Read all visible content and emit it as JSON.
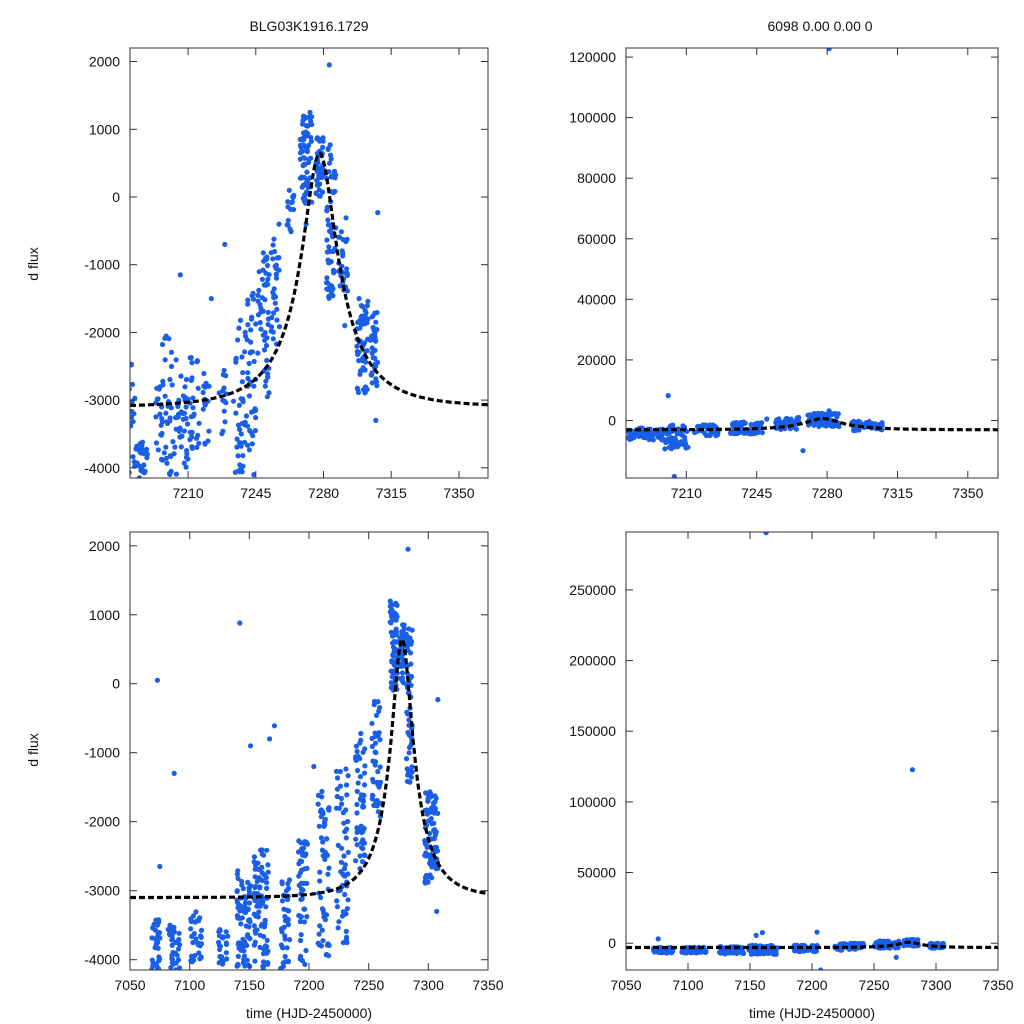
{
  "colors": {
    "points": "#1a5fe6",
    "model": "#000000",
    "frame": "#333333"
  },
  "header": {
    "left_title": "BLG03K1916.1729",
    "right_title": "6098   0.00   0.00   0"
  },
  "axis_text": {
    "xlabel": "time (HJD-2450000)",
    "ylabel": "d flux"
  },
  "chart_data": [
    {
      "id": "top-left",
      "type": "scatter",
      "title": "BLG03K1916.1729",
      "xlabel": "",
      "ylabel": "d flux",
      "xlim": [
        7180,
        7365
      ],
      "ylim": [
        -4150,
        2200
      ],
      "xticks": [
        7210,
        7245,
        7280,
        7315,
        7350
      ],
      "yticks": [
        -4000,
        -3000,
        -2000,
        -1000,
        0,
        1000,
        2000
      ],
      "model": {
        "t0": 7278,
        "tE": 32,
        "u0": 0.28,
        "fs": 1400,
        "base": -4500
      },
      "clusters": [
        {
          "t": 7181,
          "w": 1.5,
          "ylo": -4100,
          "yhi": -2400,
          "n": 14
        },
        {
          "t": 7186,
          "w": 3,
          "ylo": -4150,
          "yhi": -3600,
          "n": 25
        },
        {
          "t": 7195,
          "w": 2,
          "ylo": -4000,
          "yhi": -2700,
          "n": 18
        },
        {
          "t": 7200,
          "w": 4,
          "ylo": -4100,
          "yhi": -1900,
          "n": 40
        },
        {
          "t": 7207,
          "w": 3,
          "ylo": -4000,
          "yhi": -2600,
          "n": 30
        },
        {
          "t": 7213,
          "w": 3,
          "ylo": -3800,
          "yhi": -2200,
          "n": 25
        },
        {
          "t": 7219,
          "w": 2,
          "ylo": -3700,
          "yhi": -2600,
          "n": 15
        },
        {
          "t": 7228,
          "w": 2,
          "ylo": -3500,
          "yhi": -2400,
          "n": 14
        },
        {
          "t": 7236,
          "w": 2.5,
          "ylo": -4100,
          "yhi": -1700,
          "n": 35
        },
        {
          "t": 7242,
          "w": 3,
          "ylo": -3800,
          "yhi": -1400,
          "n": 45
        },
        {
          "t": 7249,
          "w": 3,
          "ylo": -3000,
          "yhi": -800,
          "n": 50
        },
        {
          "t": 7255,
          "w": 2.5,
          "ylo": -2200,
          "yhi": -600,
          "n": 30
        },
        {
          "t": 7263,
          "w": 2,
          "ylo": -600,
          "yhi": 100,
          "n": 15
        },
        {
          "t": 7271,
          "w": 3,
          "ylo": -100,
          "yhi": 1200,
          "n": 70
        },
        {
          "t": 7278,
          "w": 2,
          "ylo": 0,
          "yhi": 900,
          "n": 40
        },
        {
          "t": 7284,
          "w": 2.5,
          "ylo": -1500,
          "yhi": 800,
          "n": 60
        },
        {
          "t": 7290,
          "w": 2.5,
          "ylo": -1400,
          "yhi": -300,
          "n": 30
        },
        {
          "t": 7300,
          "w": 3,
          "ylo": -2900,
          "yhi": -1500,
          "n": 55
        },
        {
          "t": 7306,
          "w": 2,
          "ylo": -2800,
          "yhi": -1600,
          "n": 35
        }
      ],
      "outliers": [
        [
          7182,
          -3200
        ],
        [
          7189,
          -3800
        ],
        [
          7206,
          -1150
        ],
        [
          7222,
          -1500
        ],
        [
          7229,
          -700
        ],
        [
          7244,
          -4100
        ],
        [
          7257,
          -400
        ],
        [
          7271,
          -400
        ],
        [
          7283,
          1950
        ],
        [
          7291,
          -1900
        ],
        [
          7307,
          -3300
        ],
        [
          7308,
          -230
        ],
        [
          7268,
          850
        ],
        [
          7273,
          1250
        ]
      ]
    },
    {
      "id": "top-right",
      "type": "scatter",
      "title": "6098   0.00   0.00   0",
      "xlabel": "",
      "ylabel": "",
      "xlim": [
        7180,
        7365
      ],
      "ylim": [
        -19000,
        123000
      ],
      "xticks": [
        7210,
        7245,
        7280,
        7315,
        7350
      ],
      "yticks": [
        0,
        20000,
        40000,
        60000,
        80000,
        100000,
        120000
      ],
      "model": {
        "t0": 7278,
        "tE": 32,
        "u0": 0.28,
        "fs": 1400,
        "base": -4500
      },
      "clusters": [
        {
          "t": 7190,
          "w": 9,
          "ylo": -6500,
          "yhi": -2500,
          "n": 80
        },
        {
          "t": 7205,
          "w": 6,
          "ylo": -9500,
          "yhi": -1500,
          "n": 60
        },
        {
          "t": 7220,
          "w": 6,
          "ylo": -5000,
          "yhi": -1500,
          "n": 40
        },
        {
          "t": 7240,
          "w": 8,
          "ylo": -4500,
          "yhi": -500,
          "n": 70
        },
        {
          "t": 7260,
          "w": 6,
          "ylo": -3000,
          "yhi": 1000,
          "n": 40
        },
        {
          "t": 7278,
          "w": 8,
          "ylo": -2000,
          "yhi": 2500,
          "n": 90
        },
        {
          "t": 7300,
          "w": 8,
          "ylo": -3500,
          "yhi": 0,
          "n": 50
        }
      ],
      "outliers": [
        [
          7201,
          8200
        ],
        [
          7281,
          122800
        ],
        [
          7204,
          -18500
        ],
        [
          7268,
          -10000
        ],
        [
          7281,
          3200
        ],
        [
          7250,
          500
        ]
      ]
    },
    {
      "id": "bottom-left",
      "type": "scatter",
      "title": "",
      "xlabel": "time (HJD-2450000)",
      "ylabel": "d flux",
      "xlim": [
        7050,
        7350
      ],
      "ylim": [
        -4150,
        2200
      ],
      "xticks": [
        7050,
        7100,
        7150,
        7200,
        7250,
        7300,
        7350
      ],
      "yticks": [
        -4000,
        -3000,
        -2000,
        -1000,
        0,
        1000,
        2000
      ],
      "model": {
        "t0": 7278,
        "tE": 32,
        "u0": 0.28,
        "fs": 1400,
        "base": -4500
      },
      "clusters": [
        {
          "t": 7072,
          "w": 4,
          "ylo": -4150,
          "yhi": -3400,
          "n": 30
        },
        {
          "t": 7087,
          "w": 5,
          "ylo": -4150,
          "yhi": -3500,
          "n": 35
        },
        {
          "t": 7105,
          "w": 5,
          "ylo": -4100,
          "yhi": -3300,
          "n": 30
        },
        {
          "t": 7128,
          "w": 4,
          "ylo": -4100,
          "yhi": -3500,
          "n": 25
        },
        {
          "t": 7145,
          "w": 6,
          "ylo": -4150,
          "yhi": -2700,
          "n": 70
        },
        {
          "t": 7160,
          "w": 6,
          "ylo": -4150,
          "yhi": -2400,
          "n": 80
        },
        {
          "t": 7180,
          "w": 4,
          "ylo": -4150,
          "yhi": -2800,
          "n": 40
        },
        {
          "t": 7195,
          "w": 4,
          "ylo": -4100,
          "yhi": -2200,
          "n": 45
        },
        {
          "t": 7212,
          "w": 5,
          "ylo": -4000,
          "yhi": -1500,
          "n": 55
        },
        {
          "t": 7228,
          "w": 5,
          "ylo": -3800,
          "yhi": -1200,
          "n": 55
        },
        {
          "t": 7243,
          "w": 4,
          "ylo": -2700,
          "yhi": -600,
          "n": 55
        },
        {
          "t": 7256,
          "w": 4,
          "ylo": -2000,
          "yhi": -200,
          "n": 40
        },
        {
          "t": 7271,
          "w": 3,
          "ylo": -100,
          "yhi": 1200,
          "n": 70
        },
        {
          "t": 7278,
          "w": 2,
          "ylo": 0,
          "yhi": 900,
          "n": 40
        },
        {
          "t": 7284,
          "w": 2.5,
          "ylo": -1500,
          "yhi": 800,
          "n": 60
        },
        {
          "t": 7300,
          "w": 3,
          "ylo": -2900,
          "yhi": -1500,
          "n": 55
        },
        {
          "t": 7306,
          "w": 2,
          "ylo": -2800,
          "yhi": -1600,
          "n": 35
        }
      ],
      "outliers": [
        [
          7073,
          50
        ],
        [
          7075,
          -2650
        ],
        [
          7087,
          -1300
        ],
        [
          7142,
          880
        ],
        [
          7151,
          -900
        ],
        [
          7167,
          -800
        ],
        [
          7171,
          -610
        ],
        [
          7204,
          -1200
        ],
        [
          7283,
          1950
        ],
        [
          7308,
          -230
        ],
        [
          7150,
          -3000
        ],
        [
          7307,
          -3300
        ]
      ]
    },
    {
      "id": "bottom-right",
      "type": "scatter",
      "title": "",
      "xlabel": "time (HJD-2450000)",
      "ylabel": "",
      "xlim": [
        7050,
        7350
      ],
      "ylim": [
        -19000,
        291000
      ],
      "xticks": [
        7050,
        7100,
        7150,
        7200,
        7250,
        7300,
        7350
      ],
      "yticks": [
        0,
        50000,
        100000,
        150000,
        200000,
        250000
      ],
      "model": {
        "t0": 7278,
        "tE": 32,
        "u0": 0.28,
        "fs": 1400,
        "base": -4500
      },
      "clusters": [
        {
          "t": 7080,
          "w": 8,
          "ylo": -7000,
          "yhi": -3000,
          "n": 60
        },
        {
          "t": 7105,
          "w": 10,
          "ylo": -7000,
          "yhi": -3000,
          "n": 60
        },
        {
          "t": 7135,
          "w": 10,
          "ylo": -7500,
          "yhi": -2500,
          "n": 80
        },
        {
          "t": 7160,
          "w": 12,
          "ylo": -8000,
          "yhi": -1500,
          "n": 90
        },
        {
          "t": 7195,
          "w": 10,
          "ylo": -6000,
          "yhi": -1500,
          "n": 60
        },
        {
          "t": 7230,
          "w": 12,
          "ylo": -5000,
          "yhi": 0,
          "n": 70
        },
        {
          "t": 7260,
          "w": 10,
          "ylo": -3500,
          "yhi": 1500,
          "n": 60
        },
        {
          "t": 7280,
          "w": 6,
          "ylo": -2000,
          "yhi": 2500,
          "n": 70
        },
        {
          "t": 7300,
          "w": 6,
          "ylo": -3500,
          "yhi": 0,
          "n": 50
        }
      ],
      "outliers": [
        [
          7163,
          290500
        ],
        [
          7281,
          122800
        ],
        [
          7076,
          3000
        ],
        [
          7155,
          5500
        ],
        [
          7160,
          7500
        ],
        [
          7204,
          7800
        ],
        [
          7207,
          -19000
        ],
        [
          7268,
          -10000
        ],
        [
          7074,
          -5500
        ]
      ]
    }
  ]
}
